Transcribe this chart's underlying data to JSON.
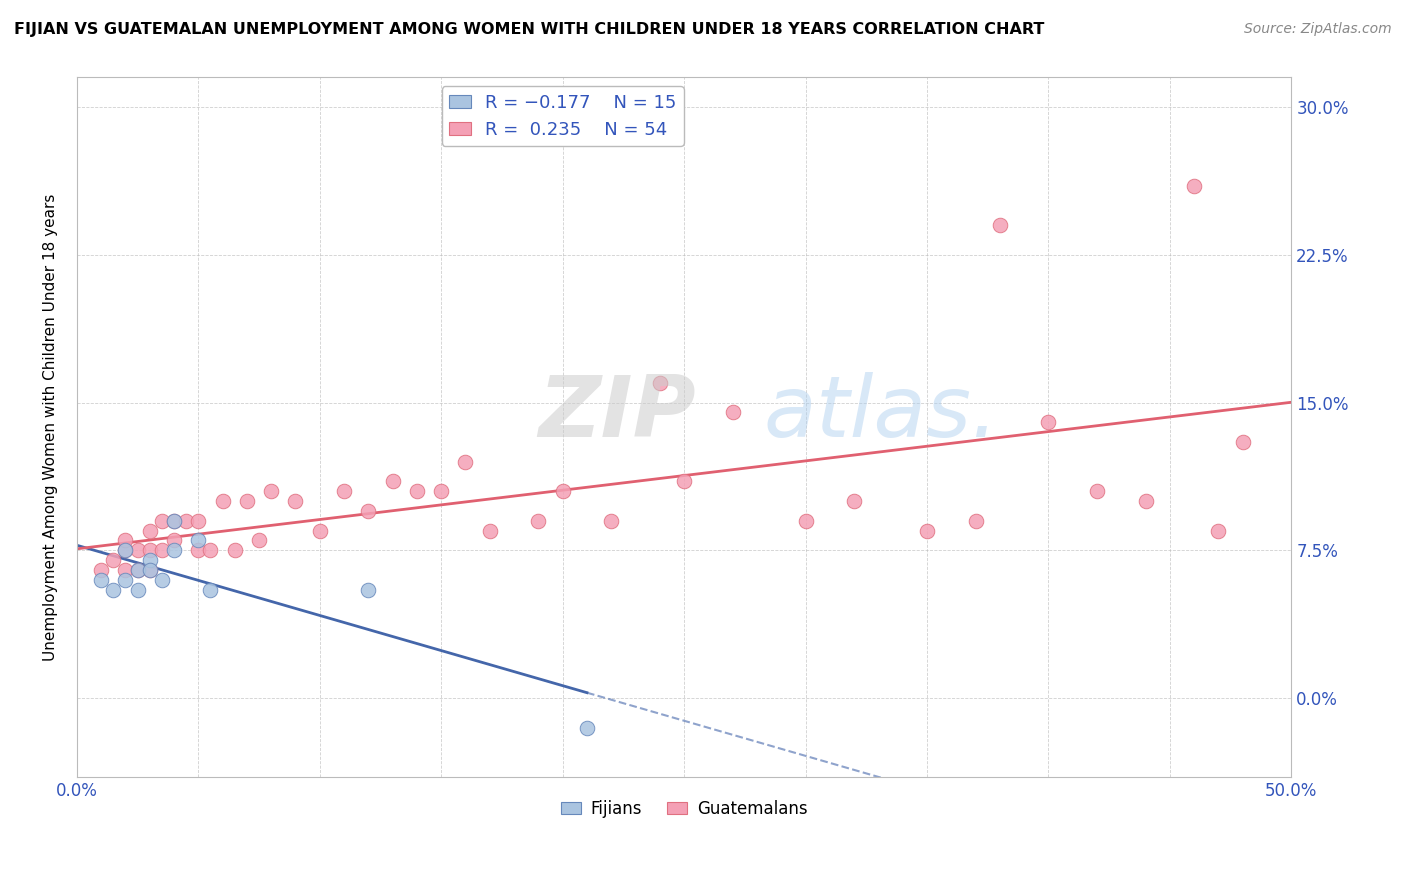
{
  "title": "FIJIAN VS GUATEMALAN UNEMPLOYMENT AMONG WOMEN WITH CHILDREN UNDER 18 YEARS CORRELATION CHART",
  "source": "Source: ZipAtlas.com",
  "ylabel": "Unemployment Among Women with Children Under 18 years",
  "xlim": [
    0.0,
    0.5
  ],
  "ylim": [
    -0.04,
    0.315
  ],
  "xticks": [
    0.0,
    0.05,
    0.1,
    0.15,
    0.2,
    0.25,
    0.3,
    0.35,
    0.4,
    0.45,
    0.5
  ],
  "yticks": [
    0.0,
    0.075,
    0.15,
    0.225,
    0.3
  ],
  "xtick_labels": [
    "0.0%",
    "",
    "",
    "",
    "",
    "",
    "",
    "",
    "",
    "",
    "50.0%"
  ],
  "right_ytick_labels": [
    "0.0%",
    "7.5%",
    "15.0%",
    "22.5%",
    "30.0%"
  ],
  "fijian_color": "#aac4e0",
  "guatemalan_color": "#f4a0b5",
  "fijian_edge_color": "#6688bb",
  "guatemalan_edge_color": "#e07080",
  "fijian_line_color": "#4466aa",
  "guatemalan_line_color": "#e06070",
  "blue_text_color": "#3355bb",
  "watermark_zip": "ZIP",
  "watermark_atlas": "atlas.",
  "fijians_x": [
    0.01,
    0.015,
    0.02,
    0.02,
    0.025,
    0.025,
    0.03,
    0.03,
    0.035,
    0.04,
    0.04,
    0.05,
    0.055,
    0.12,
    0.21
  ],
  "fijians_y": [
    0.06,
    0.055,
    0.075,
    0.06,
    0.065,
    0.055,
    0.07,
    0.065,
    0.06,
    0.075,
    0.09,
    0.08,
    0.055,
    0.055,
    -0.015
  ],
  "guatemalans_x": [
    0.01,
    0.015,
    0.02,
    0.02,
    0.02,
    0.025,
    0.025,
    0.03,
    0.03,
    0.03,
    0.035,
    0.035,
    0.04,
    0.04,
    0.045,
    0.05,
    0.05,
    0.055,
    0.06,
    0.065,
    0.07,
    0.075,
    0.08,
    0.09,
    0.1,
    0.11,
    0.12,
    0.13,
    0.14,
    0.15,
    0.16,
    0.17,
    0.19,
    0.2,
    0.22,
    0.24,
    0.25,
    0.27,
    0.3,
    0.32,
    0.35,
    0.37,
    0.38,
    0.4,
    0.42,
    0.44,
    0.46,
    0.47,
    0.48
  ],
  "guatemalans_y": [
    0.065,
    0.07,
    0.065,
    0.075,
    0.08,
    0.065,
    0.075,
    0.065,
    0.075,
    0.085,
    0.075,
    0.09,
    0.08,
    0.09,
    0.09,
    0.075,
    0.09,
    0.075,
    0.1,
    0.075,
    0.1,
    0.08,
    0.105,
    0.1,
    0.085,
    0.105,
    0.095,
    0.11,
    0.105,
    0.105,
    0.12,
    0.085,
    0.09,
    0.105,
    0.09,
    0.16,
    0.11,
    0.145,
    0.09,
    0.1,
    0.085,
    0.09,
    0.24,
    0.14,
    0.105,
    0.1,
    0.26,
    0.085,
    0.13
  ]
}
